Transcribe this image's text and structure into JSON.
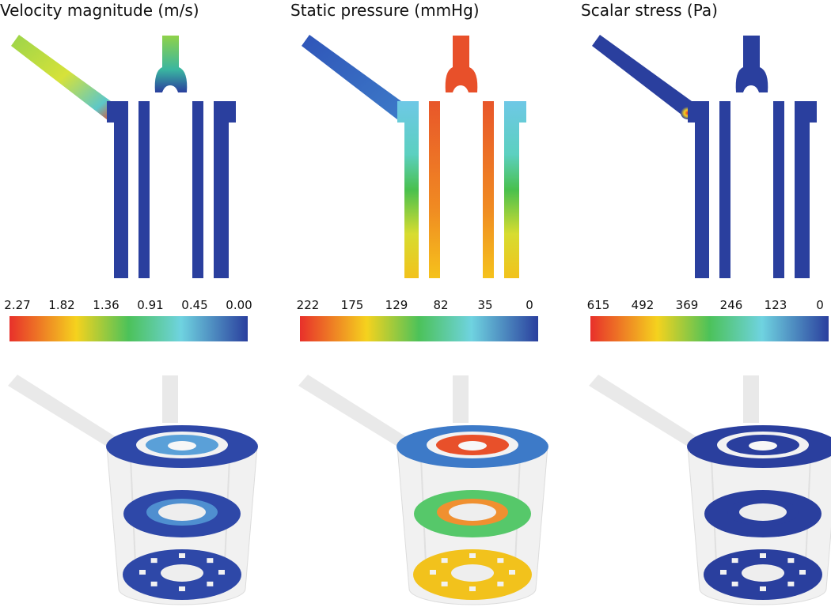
{
  "panels": [
    {
      "title": "Velocity magnitude (m/s)",
      "colorbar_ticks": [
        "2.27",
        "1.82",
        "1.36",
        "0.91",
        "0.45",
        "0.00"
      ]
    },
    {
      "title": "Static pressure (mmHg)",
      "colorbar_ticks": [
        "222",
        "175",
        "129",
        "82",
        "35",
        "0"
      ]
    },
    {
      "title": "Scalar stress (Pa)",
      "colorbar_ticks": [
        "615",
        "492",
        "369",
        "246",
        "123",
        "0"
      ]
    }
  ]
}
